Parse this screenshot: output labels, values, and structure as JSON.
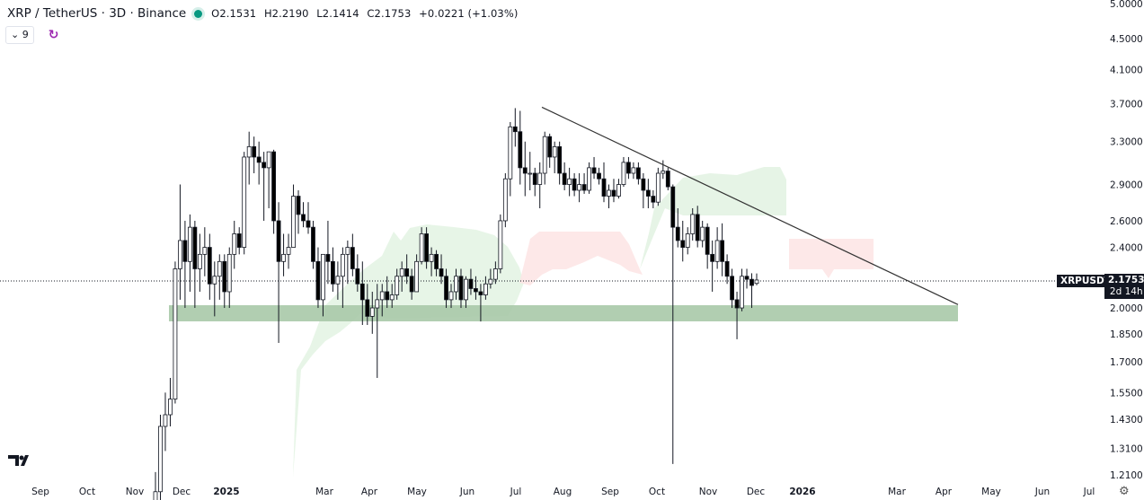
{
  "header": {
    "symbol_title": "XRP / TetherUS · 3D · Binance",
    "market_status_color": "#089981",
    "open": "O2.1531",
    "high": "H2.2190",
    "low": "L2.1414",
    "close": "C2.1753",
    "change": "+0.0221 (+1.03%)",
    "indicators_count": "9",
    "collapse_icon": "chevron-down-icon",
    "sync_icon": "refresh-icon"
  },
  "price_badge": {
    "symbol": "XRPUSDT",
    "price": "2.1753",
    "countdown": "2d 14h"
  },
  "footer": {
    "logo": "TV",
    "settings_icon": "gear-icon"
  },
  "chart_data": {
    "type": "candlestick",
    "title": "XRP / TetherUS · 3D · Binance",
    "y_scale": "log",
    "ylim": [
      1.2,
      5.0
    ],
    "grid": false,
    "y_ticks": [
      "5.0000",
      "4.5000",
      "4.1000",
      "3.7000",
      "3.3000",
      "2.9000",
      "2.6000",
      "2.4000",
      "2.0000",
      "1.8500",
      "1.7000",
      "1.5500",
      "1.4300",
      "1.3100",
      "1.2100"
    ],
    "x_ticks": [
      "Sep",
      "Oct",
      "Nov",
      "Dec",
      "2025",
      "Mar",
      "Apr",
      "May",
      "Jun",
      "Jul",
      "Aug",
      "Sep",
      "Oct",
      "Nov",
      "Dec",
      "2026",
      "Mar",
      "Apr",
      "May",
      "Jun",
      "Jul"
    ],
    "colors": {
      "up": "#ffffff",
      "down": "#000000",
      "outline": "#131722",
      "support_zone": "#a9c9a9",
      "cloud_bull": "#e3f3e3",
      "cloud_bear": "#fde6e6",
      "trendline": "#333333"
    },
    "last_price": 2.1753,
    "support_zone": {
      "low": 1.92,
      "high": 2.02,
      "from": "Dec 2024",
      "to": "Apr 2026"
    },
    "trendline": {
      "from": {
        "date": "Jul 2025",
        "price": 3.66
      },
      "to": {
        "date": "Apr 2026",
        "price": 2.02
      }
    },
    "candles_ohlc": [
      [
        1.1,
        1.22,
        1.05,
        1.15
      ],
      [
        1.15,
        1.45,
        1.12,
        1.4
      ],
      [
        1.4,
        1.55,
        1.3,
        1.45
      ],
      [
        1.45,
        1.62,
        1.4,
        1.52
      ],
      [
        1.52,
        2.3,
        1.5,
        2.25
      ],
      [
        2.25,
        2.9,
        2.05,
        2.45
      ],
      [
        2.45,
        2.6,
        2.0,
        2.3
      ],
      [
        2.3,
        2.65,
        2.1,
        2.55
      ],
      [
        2.55,
        2.6,
        2.0,
        2.25
      ],
      [
        2.25,
        2.5,
        2.1,
        2.35
      ],
      [
        2.35,
        2.55,
        2.2,
        2.4
      ],
      [
        2.4,
        2.5,
        2.05,
        2.15
      ],
      [
        2.15,
        2.3,
        1.95,
        2.2
      ],
      [
        2.2,
        2.35,
        2.05,
        2.3
      ],
      [
        2.3,
        2.35,
        2.0,
        2.1
      ],
      [
        2.1,
        2.4,
        2.0,
        2.35
      ],
      [
        2.35,
        2.6,
        2.25,
        2.5
      ],
      [
        2.5,
        2.55,
        2.35,
        2.4
      ],
      [
        2.4,
        3.2,
        2.35,
        3.15
      ],
      [
        3.15,
        3.4,
        2.9,
        3.25
      ],
      [
        3.25,
        3.35,
        3.0,
        3.15
      ],
      [
        3.15,
        3.3,
        2.9,
        3.1
      ],
      [
        3.1,
        3.2,
        2.6,
        3.05
      ],
      [
        3.05,
        3.2,
        2.7,
        3.2
      ],
      [
        3.2,
        3.22,
        2.5,
        2.6
      ],
      [
        2.6,
        2.75,
        1.8,
        2.3
      ],
      [
        2.3,
        2.5,
        2.2,
        2.35
      ],
      [
        2.35,
        2.5,
        2.25,
        2.4
      ],
      [
        2.4,
        2.9,
        2.4,
        2.8
      ],
      [
        2.8,
        2.85,
        2.5,
        2.65
      ],
      [
        2.65,
        2.75,
        2.55,
        2.6
      ],
      [
        2.6,
        2.75,
        2.5,
        2.55
      ],
      [
        2.55,
        2.6,
        2.25,
        2.3
      ],
      [
        2.3,
        2.4,
        2.0,
        2.05
      ],
      [
        2.05,
        2.3,
        1.95,
        2.35
      ],
      [
        2.35,
        2.6,
        2.15,
        2.3
      ],
      [
        2.3,
        2.4,
        2.1,
        2.15
      ],
      [
        2.15,
        2.3,
        2.05,
        2.2
      ],
      [
        2.2,
        2.4,
        2.0,
        2.35
      ],
      [
        2.35,
        2.45,
        2.15,
        2.4
      ],
      [
        2.4,
        2.5,
        2.2,
        2.25
      ],
      [
        2.25,
        2.35,
        2.1,
        2.15
      ],
      [
        2.15,
        2.3,
        1.9,
        2.05
      ],
      [
        2.05,
        2.15,
        1.9,
        1.95
      ],
      [
        1.95,
        2.1,
        1.85,
        2.0
      ],
      [
        2.0,
        2.15,
        1.62,
        2.05
      ],
      [
        2.05,
        2.15,
        1.95,
        2.1
      ],
      [
        2.1,
        2.2,
        2.0,
        2.05
      ],
      [
        2.05,
        2.15,
        2.0,
        2.08
      ],
      [
        2.08,
        2.25,
        2.05,
        2.2
      ],
      [
        2.2,
        2.3,
        2.1,
        2.25
      ],
      [
        2.25,
        2.35,
        2.15,
        2.2
      ],
      [
        2.2,
        2.25,
        2.05,
        2.1
      ],
      [
        2.1,
        2.35,
        2.1,
        2.3
      ],
      [
        2.3,
        2.55,
        2.28,
        2.5
      ],
      [
        2.5,
        2.55,
        2.25,
        2.3
      ],
      [
        2.3,
        2.4,
        2.2,
        2.35
      ],
      [
        2.35,
        2.38,
        2.2,
        2.25
      ],
      [
        2.25,
        2.35,
        2.15,
        2.2
      ],
      [
        2.2,
        2.25,
        2.0,
        2.05
      ],
      [
        2.05,
        2.15,
        2.0,
        2.1
      ],
      [
        2.1,
        2.25,
        2.05,
        2.2
      ],
      [
        2.2,
        2.25,
        2.0,
        2.05
      ],
      [
        2.05,
        2.2,
        2.0,
        2.18
      ],
      [
        2.18,
        2.25,
        2.08,
        2.12
      ],
      [
        2.12,
        2.2,
        2.05,
        2.1
      ],
      [
        2.1,
        2.15,
        1.92,
        2.08
      ],
      [
        2.08,
        2.2,
        2.05,
        2.15
      ],
      [
        2.15,
        2.25,
        2.12,
        2.18
      ],
      [
        2.18,
        2.3,
        2.15,
        2.25
      ],
      [
        2.25,
        2.65,
        2.22,
        2.6
      ],
      [
        2.6,
        3.0,
        2.55,
        2.95
      ],
      [
        2.95,
        3.5,
        2.8,
        3.45
      ],
      [
        3.45,
        3.65,
        3.25,
        3.4
      ],
      [
        3.4,
        3.62,
        2.9,
        3.05
      ],
      [
        3.05,
        3.3,
        2.8,
        3.0
      ],
      [
        3.0,
        3.2,
        2.85,
        3.0
      ],
      [
        3.0,
        3.05,
        2.8,
        2.9
      ],
      [
        2.9,
        3.1,
        2.7,
        3.0
      ],
      [
        3.0,
        3.4,
        2.9,
        3.35
      ],
      [
        3.35,
        3.38,
        3.05,
        3.15
      ],
      [
        3.15,
        3.3,
        3.0,
        3.25
      ],
      [
        3.25,
        3.3,
        2.9,
        3.0
      ],
      [
        3.0,
        3.1,
        2.85,
        2.9
      ],
      [
        2.9,
        3.05,
        2.8,
        2.95
      ],
      [
        2.95,
        3.0,
        2.8,
        2.85
      ],
      [
        2.85,
        3.0,
        2.75,
        2.9
      ],
      [
        2.9,
        3.0,
        2.82,
        2.85
      ],
      [
        2.85,
        3.1,
        2.82,
        3.05
      ],
      [
        3.05,
        3.15,
        2.95,
        3.0
      ],
      [
        3.0,
        3.05,
        2.9,
        2.95
      ],
      [
        2.95,
        3.1,
        2.75,
        2.8
      ],
      [
        2.8,
        2.9,
        2.7,
        2.85
      ],
      [
        2.85,
        2.95,
        2.75,
        2.8
      ],
      [
        2.8,
        2.95,
        2.78,
        2.9
      ],
      [
        2.9,
        3.15,
        2.88,
        3.1
      ],
      [
        3.1,
        3.15,
        2.95,
        3.0
      ],
      [
        3.0,
        3.1,
        2.95,
        3.05
      ],
      [
        3.05,
        3.1,
        2.9,
        2.95
      ],
      [
        2.95,
        3.0,
        2.7,
        2.85
      ],
      [
        2.85,
        2.95,
        2.7,
        2.8
      ],
      [
        2.8,
        2.85,
        2.7,
        2.75
      ],
      [
        2.75,
        3.05,
        2.72,
        3.0
      ],
      [
        3.0,
        3.12,
        2.95,
        3.02
      ],
      [
        3.02,
        3.05,
        2.85,
        2.88
      ],
      [
        2.88,
        2.9,
        1.25,
        2.55
      ],
      [
        2.55,
        2.7,
        2.4,
        2.45
      ],
      [
        2.45,
        2.6,
        2.3,
        2.4
      ],
      [
        2.4,
        2.55,
        2.35,
        2.5
      ],
      [
        2.5,
        2.7,
        2.45,
        2.65
      ],
      [
        2.65,
        2.72,
        2.4,
        2.45
      ],
      [
        2.45,
        2.6,
        2.4,
        2.55
      ],
      [
        2.55,
        2.58,
        2.25,
        2.35
      ],
      [
        2.35,
        2.45,
        2.1,
        2.3
      ],
      [
        2.3,
        2.55,
        2.25,
        2.45
      ],
      [
        2.45,
        2.58,
        2.2,
        2.3
      ],
      [
        2.3,
        2.35,
        2.15,
        2.2
      ],
      [
        2.2,
        2.25,
        2.0,
        2.05
      ],
      [
        2.05,
        2.1,
        1.82,
        2.0
      ],
      [
        2.0,
        2.25,
        1.98,
        2.2
      ],
      [
        2.2,
        2.25,
        2.12,
        2.18
      ],
      [
        2.18,
        2.22,
        2.0,
        2.14
      ],
      [
        2.1531,
        2.219,
        2.1414,
        2.1753
      ]
    ]
  }
}
